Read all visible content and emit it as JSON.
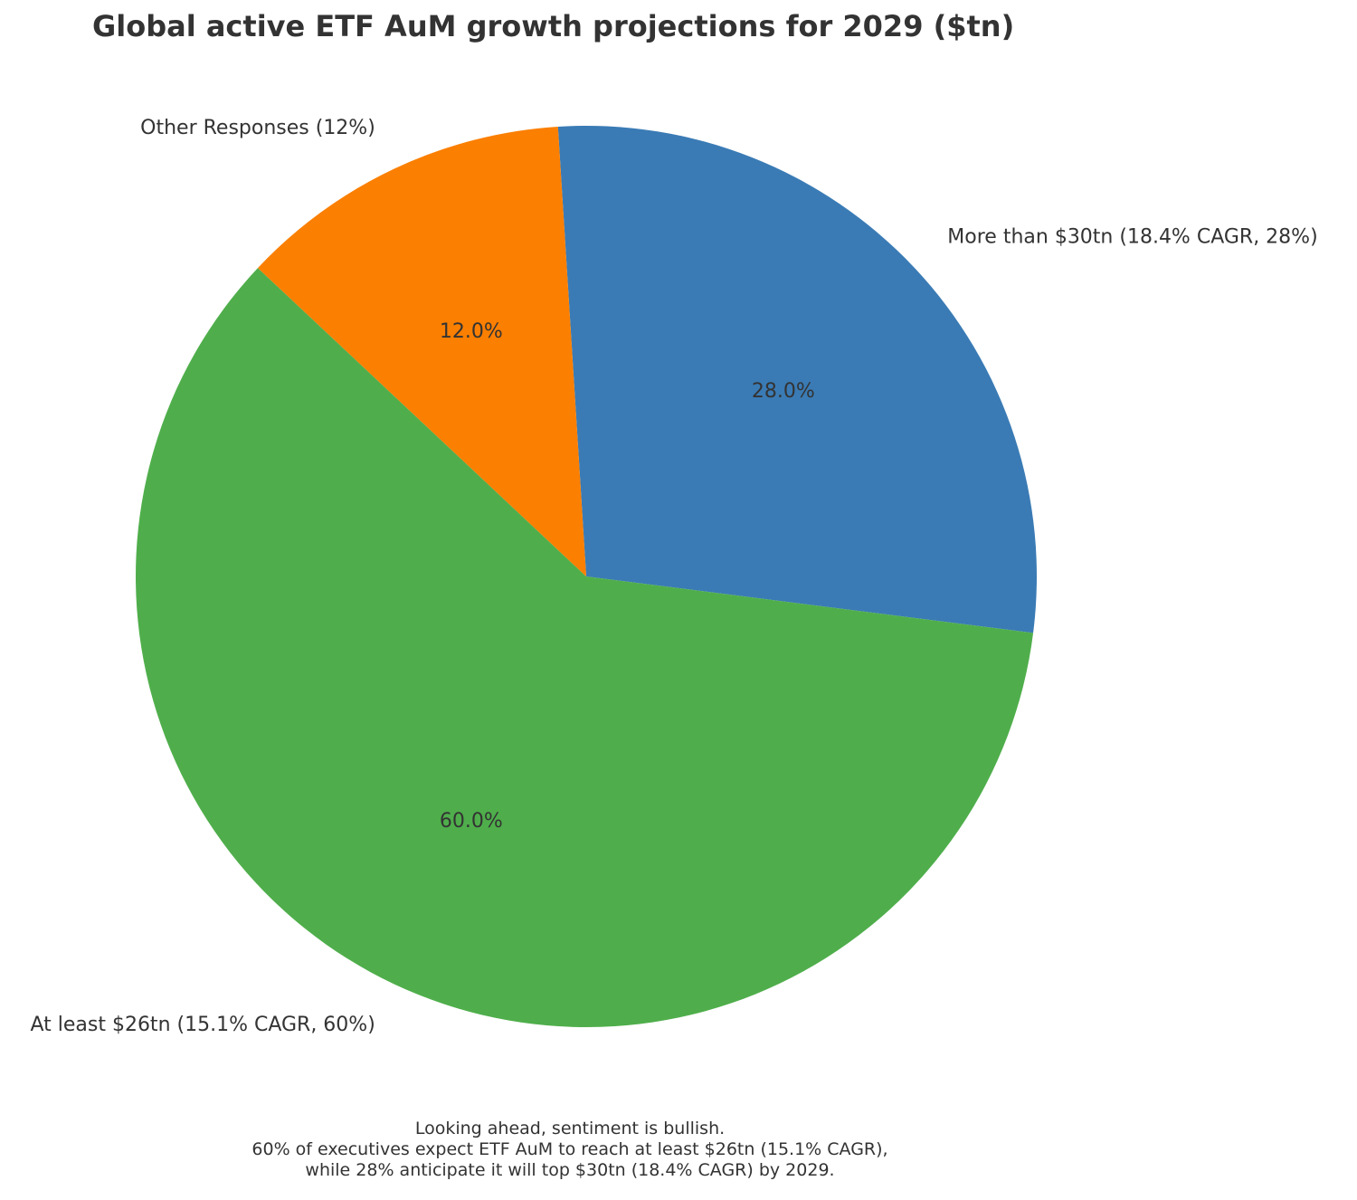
{
  "chart_data": {
    "type": "pie",
    "title": "Global active ETF AuM growth projections for 2029 ($tn)",
    "slices": [
      {
        "label": "More than $30tn (18.4% CAGR, 28%)",
        "value": 28,
        "pct_label": "28.0%",
        "color": "#3a7bb5"
      },
      {
        "label": "At least $26tn (15.1% CAGR, 60%)",
        "value": 60,
        "pct_label": "60.0%",
        "color": "#4fae4b"
      },
      {
        "label": "Other Responses (12%)",
        "value": 12,
        "pct_label": "12.0%",
        "color": "#fb7f01"
      }
    ],
    "legend": "none"
  },
  "caption": {
    "line1": "Looking ahead, sentiment is bullish.",
    "line2": "60% of executives expect ETF AuM to reach at least $26tn (15.1% CAGR),",
    "line3": "while 28% anticipate it will top $30tn (18.4% CAGR) by 2029."
  }
}
